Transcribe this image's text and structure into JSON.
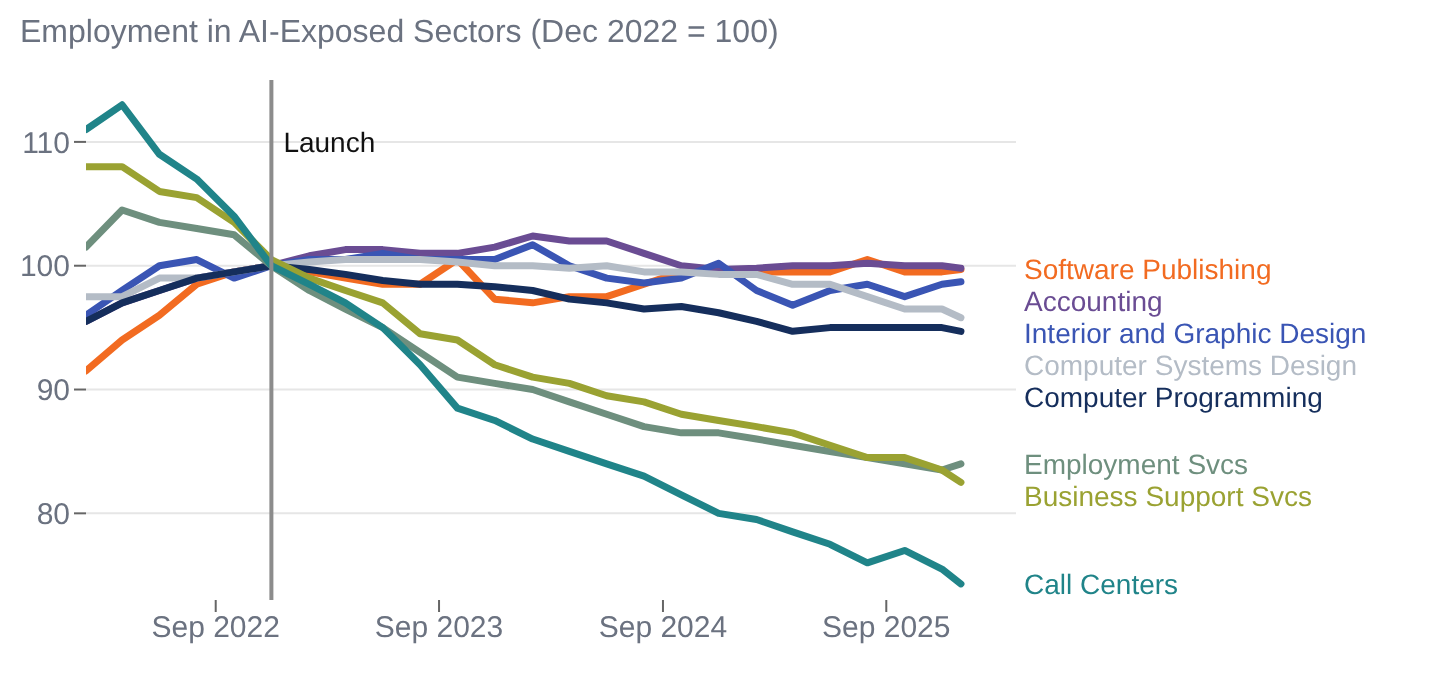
{
  "chart_data": {
    "type": "line",
    "title": "Employment in AI-Exposed Sectors (Dec 2022 = 100)",
    "x": [
      "2022-02",
      "2022-04",
      "2022-06",
      "2022-08",
      "2022-10",
      "2022-12",
      "2023-02",
      "2023-04",
      "2023-06",
      "2023-08",
      "2023-10",
      "2023-12",
      "2024-02",
      "2024-04",
      "2024-06",
      "2024-08",
      "2024-10",
      "2024-12",
      "2025-02",
      "2025-04",
      "2025-06",
      "2025-08",
      "2025-10",
      "2025-12",
      "2026-01"
    ],
    "series": [
      {
        "name": "Software Publishing",
        "color": "#f26b21",
        "values": [
          91.5,
          94,
          96,
          98.5,
          99.5,
          100,
          99.5,
          99,
          98.5,
          98.5,
          100.5,
          97.3,
          97,
          97.5,
          97.5,
          98.5,
          99.5,
          99.5,
          99.5,
          99.5,
          99.5,
          100.5,
          99.5,
          99.5,
          99.7
        ]
      },
      {
        "name": "Accounting",
        "color": "#6a4c93",
        "values": [
          95.5,
          97,
          98,
          99,
          99.5,
          100,
          100.8,
          101.3,
          101.3,
          101,
          101,
          101.5,
          102.4,
          102,
          102,
          101,
          100,
          99.7,
          99.8,
          100,
          100,
          100.2,
          100,
          100,
          99.8
        ]
      },
      {
        "name": "Interior and Graphic Design",
        "color": "#3a55b4",
        "values": [
          96,
          98,
          100,
          100.5,
          99,
          100,
          100.5,
          100.5,
          101,
          100.5,
          100.5,
          100.5,
          101.7,
          100,
          99,
          98.6,
          99,
          100.2,
          98,
          96.8,
          98,
          98.5,
          97.5,
          98.5,
          98.7
        ]
      },
      {
        "name": "Computer Systems Design",
        "color": "#b4bcc6",
        "values": [
          97.5,
          97.5,
          99,
          99,
          99.5,
          100,
          100.3,
          100.5,
          100.5,
          100.5,
          100.3,
          100,
          100,
          99.8,
          100,
          99.5,
          99.5,
          99.3,
          99.3,
          98.5,
          98.5,
          97.5,
          96.5,
          96.5,
          95.8
        ]
      },
      {
        "name": "Computer Programming",
        "color": "#152e5c",
        "values": [
          95.5,
          97,
          98,
          99,
          99.5,
          100,
          99.7,
          99.3,
          98.8,
          98.5,
          98.5,
          98.3,
          98,
          97.3,
          97,
          96.5,
          96.7,
          96.2,
          95.5,
          94.7,
          95,
          95,
          95,
          95,
          94.7
        ]
      },
      {
        "name": "Employment Svcs",
        "color": "#6e8f7e",
        "values": [
          101.5,
          104.5,
          103.5,
          103,
          102.5,
          100,
          98,
          96.5,
          95,
          93,
          91,
          90.5,
          90,
          89,
          88,
          87,
          86.5,
          86.5,
          86,
          85.5,
          85,
          84.5,
          84,
          83.5,
          84
        ]
      },
      {
        "name": "Business Support Svcs",
        "color": "#9aa232",
        "values": [
          108,
          108,
          106,
          105.5,
          103.5,
          100.5,
          99,
          98,
          97,
          94.5,
          94,
          92,
          91,
          90.5,
          89.5,
          89,
          88,
          87.5,
          87,
          86.5,
          85.5,
          84.5,
          84.5,
          83.5,
          82.5
        ]
      },
      {
        "name": "Call Centers",
        "color": "#208489",
        "values": [
          111,
          113,
          109,
          107,
          104,
          100,
          98.5,
          97,
          95,
          92,
          88.5,
          87.5,
          86,
          85,
          84,
          83,
          81.5,
          80,
          79.5,
          78.5,
          77.5,
          76,
          77,
          75.5,
          74.3
        ]
      }
    ],
    "xlim": [
      "2022-02",
      "2026-04"
    ],
    "ylim": [
      73,
      115
    ],
    "yticks": [
      80,
      90,
      100,
      110
    ],
    "xticks": [
      {
        "value": "2022-09",
        "label": "Sep 2022"
      },
      {
        "value": "2023-09",
        "label": "Sep 2023"
      },
      {
        "value": "2024-09",
        "label": "Sep 2024"
      },
      {
        "value": "2025-09",
        "label": "Sep 2025"
      }
    ],
    "ref_lines": [
      {
        "axis": "x",
        "value": "2022-12",
        "label": "Launch",
        "color": "#8c8c8c"
      }
    ],
    "grid": "y",
    "legend": false,
    "marker": "none",
    "line_style": "solid"
  }
}
